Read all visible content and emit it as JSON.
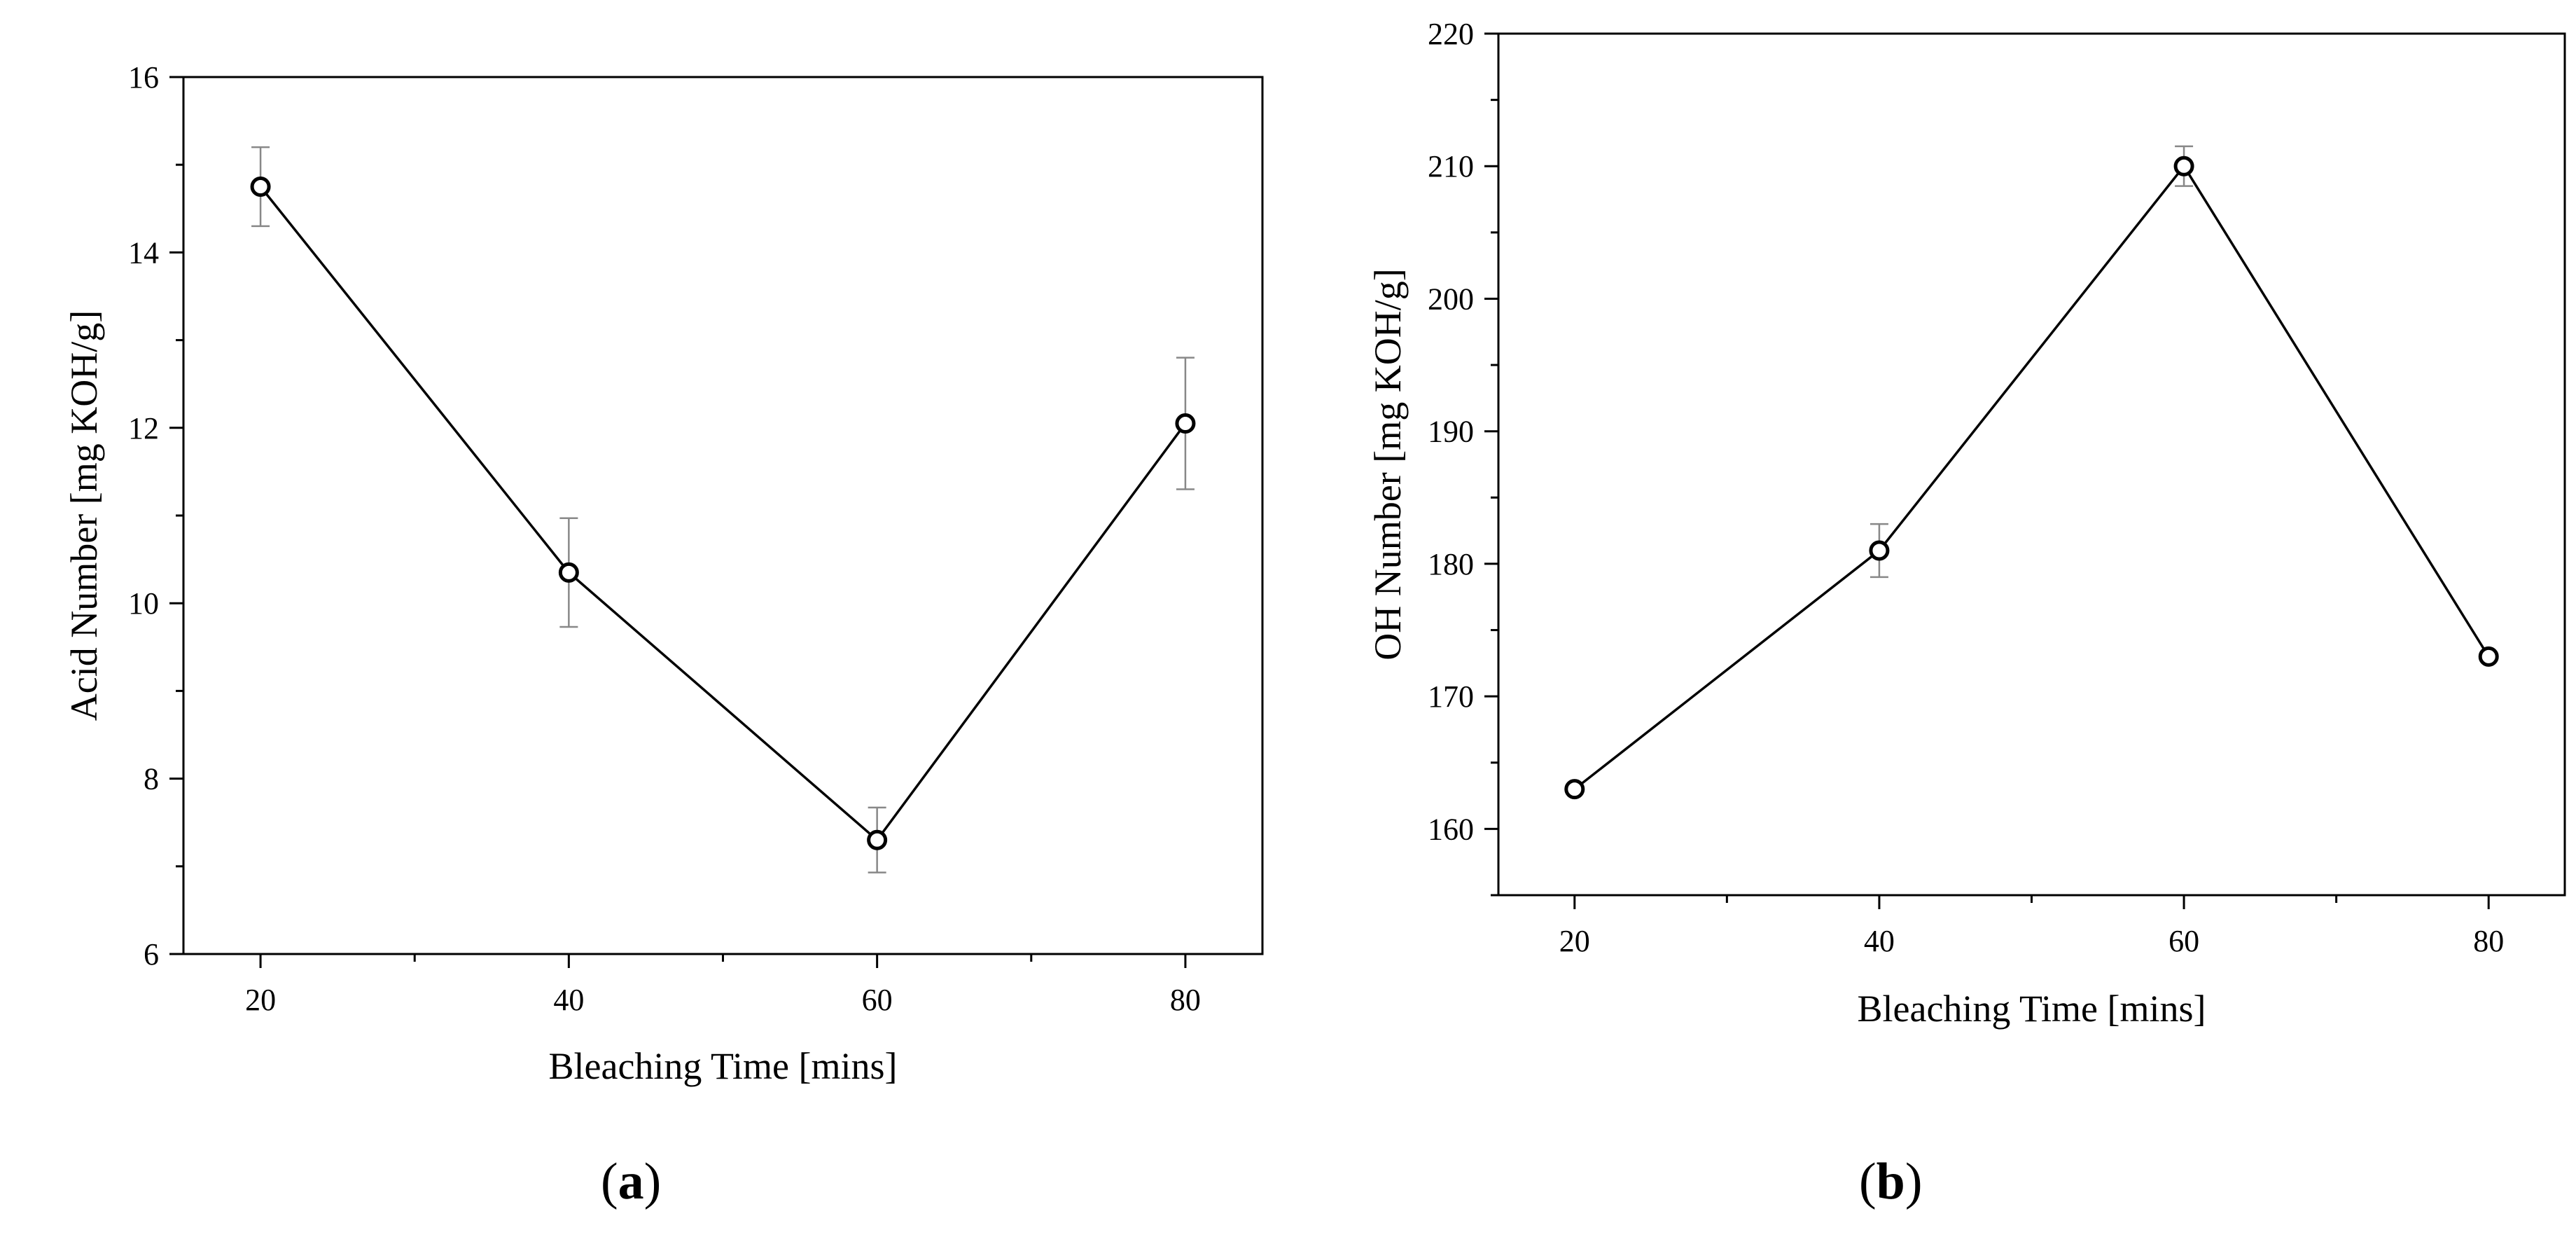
{
  "panels": {
    "a": {
      "label_open": "(",
      "label_letter": "a",
      "label_close": ")"
    },
    "b": {
      "label_open": "(",
      "label_letter": "b",
      "label_close": ")"
    }
  },
  "chart_data": [
    {
      "type": "line",
      "panel": "a",
      "xlabel": "Bleaching Time [mins]",
      "ylabel": "Acid Number [mg KOH/g]",
      "xlim": [
        15,
        85
      ],
      "ylim": [
        6,
        16
      ],
      "xticks": [
        20,
        40,
        60,
        80
      ],
      "xminor": [
        30,
        50,
        70
      ],
      "yticks": [
        6,
        8,
        10,
        12,
        14,
        16
      ],
      "yminor": [
        7,
        9,
        11,
        13,
        15
      ],
      "marker": "open-circle",
      "grid": false,
      "series": [
        {
          "x": [
            20,
            40,
            60,
            80
          ],
          "y": [
            14.75,
            10.35,
            7.3,
            12.05
          ],
          "error": [
            0.45,
            0.62,
            0.37,
            0.75
          ]
        }
      ]
    },
    {
      "type": "line",
      "panel": "b",
      "xlabel": "Bleaching Time [mins]",
      "ylabel": "OH Number [mg KOH/g]",
      "xlim": [
        15,
        85
      ],
      "ylim": [
        155,
        220
      ],
      "xticks": [
        20,
        40,
        60,
        80
      ],
      "xminor": [
        30,
        50,
        70
      ],
      "yticks": [
        160,
        170,
        180,
        190,
        200,
        210,
        220
      ],
      "yminor": [
        155,
        165,
        175,
        185,
        195,
        205,
        215
      ],
      "marker": "open-circle",
      "grid": false,
      "series": [
        {
          "x": [
            20,
            40,
            60,
            80
          ],
          "y": [
            163,
            181,
            210,
            173
          ],
          "error": [
            0,
            2,
            1.5,
            0
          ]
        }
      ]
    }
  ]
}
